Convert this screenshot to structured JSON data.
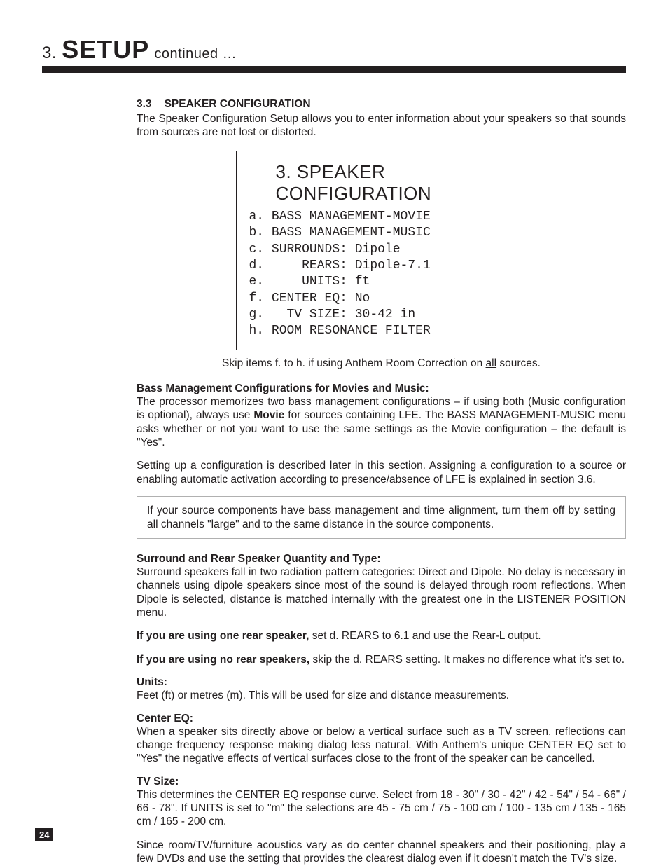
{
  "header": {
    "number": "3.",
    "main": "SETUP",
    "continued": "continued …"
  },
  "section": {
    "num": "3.3",
    "title": "SPEAKER CONFIGURATION",
    "intro": "The Speaker Configuration Setup allows you to enter information about your speakers so that sounds from sources are not lost or distorted."
  },
  "menu": {
    "title": "3. SPEAKER CONFIGURATION",
    "lines": "a. BASS MANAGEMENT-MOVIE\nb. BASS MANAGEMENT-MUSIC\nc. SURROUNDS: Dipole\nd.     REARS: Dipole-7.1\ne.     UNITS: ft\nf. CENTER EQ: No\ng.   TV SIZE: 30-42 in\nh. ROOM RESONANCE FILTER"
  },
  "skip_note_pre": "Skip items f. to h. if using Anthem Room Correction on ",
  "skip_note_all": "all",
  "skip_note_post": " sources.",
  "bass_mgmt": {
    "head": "Bass Management Configurations for Movies and Music:",
    "p1_a": "The processor memorizes two bass management configurations – if using both (Music configuration is optional), always use ",
    "p1_b": "Movie",
    "p1_c": " for sources containing LFE. The BASS MANAGEMENT-MUSIC menu asks whether or not you want to use the same settings as the Movie configuration – the default is \"Yes\".",
    "p2": "Setting up a configuration is described later in this section. Assigning a configuration to a source or enabling automatic activation according to presence/absence of LFE is explained in section 3.6."
  },
  "callout": "If your source components have bass management and time alignment, turn them off by setting all channels \"large\" and to the same distance in the source components.",
  "surround": {
    "head": "Surround and Rear Speaker Quantity and Type:",
    "p1": "Surround speakers fall in two radiation pattern categories: Direct and Dipole. No delay is necessary in channels using dipole speakers since most of the sound is delayed through room reflections. When Dipole is selected, distance is matched internally with the greatest one in the LISTENER POSITION menu.",
    "one_head": "If you are using one rear speaker,",
    "one_body": " set d. REARS to 6.1 and use the Rear-L output.",
    "no_head": "If you are using no rear speakers,",
    "no_body": " skip the d. REARS setting. It makes no difference what it's set to."
  },
  "units": {
    "head": "Units:",
    "body": "Feet (ft) or metres (m). This will be used for size and distance measurements."
  },
  "center_eq": {
    "head": "Center EQ:",
    "body": "When a speaker sits directly above or below a vertical surface such as a TV screen, reflections can change frequency response making dialog less natural. With Anthem's unique CENTER EQ set to \"Yes\" the negative effects of vertical surfaces close to the front of the speaker can be cancelled."
  },
  "tv_size": {
    "head": "TV Size:",
    "p1": "This determines the CENTER EQ response curve. Select from 18 - 30\" / 30 - 42\" / 42 - 54\" / 54 - 66\" / 66 - 78\". If UNITS is set to \"m\" the selections are 45 - 75 cm / 75 - 100 cm / 100 - 135 cm / 135 - 165 cm / 165 - 200 cm.",
    "p2": "Since room/TV/furniture acoustics vary as do center channel speakers and their positioning, play a few DVDs and use the setting that provides the clearest dialog even if it doesn't match the TV's size."
  },
  "page_number": "24"
}
